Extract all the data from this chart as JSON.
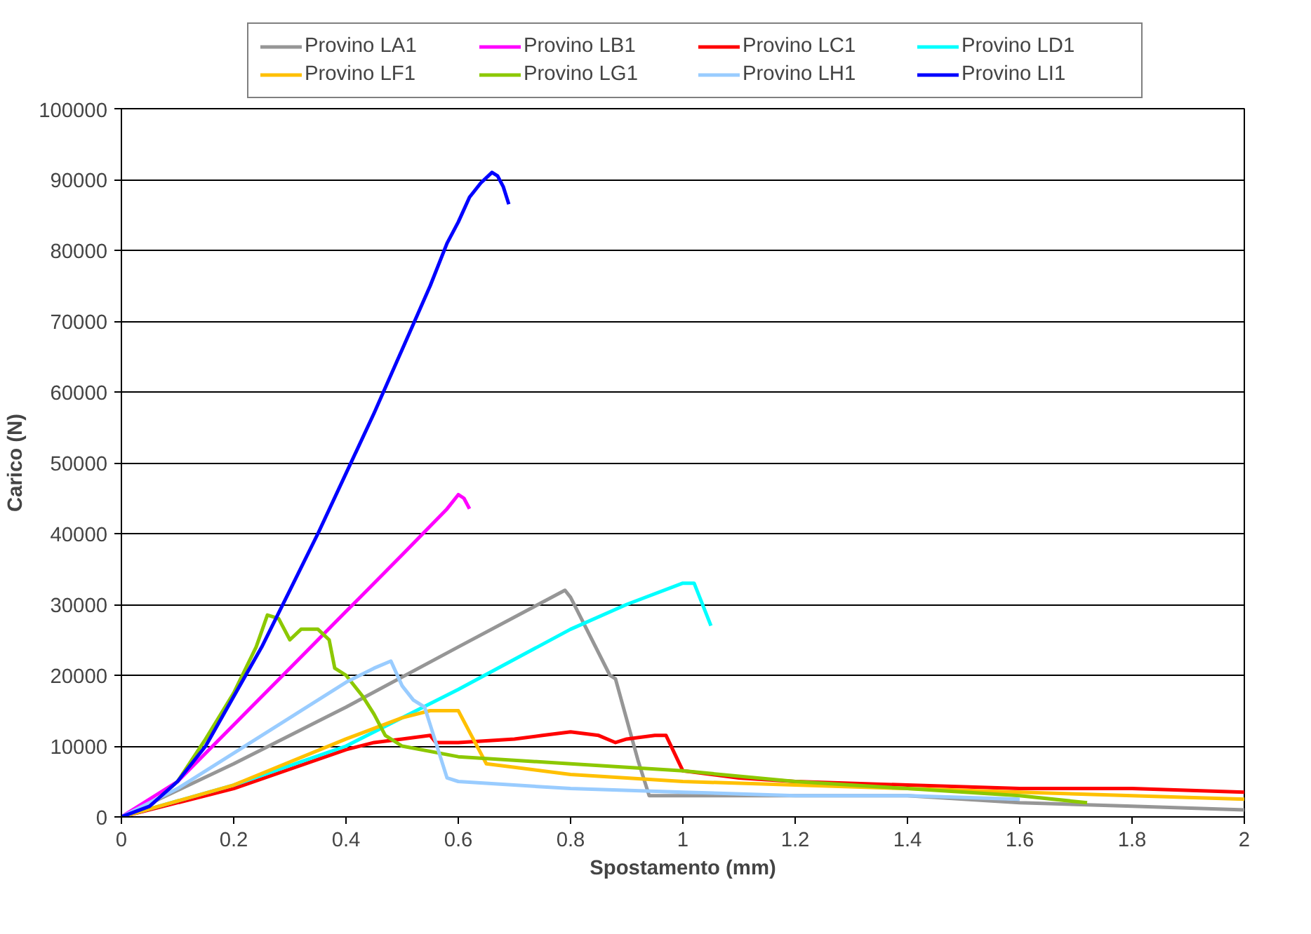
{
  "chart_data": {
    "type": "line",
    "xlabel": "Spostamento (mm)",
    "ylabel": "Carico (N)",
    "xlim": [
      0,
      2
    ],
    "ylim": [
      0,
      100000
    ],
    "xticks": [
      0,
      0.2,
      0.4,
      0.6,
      0.8,
      1,
      1.2,
      1.4,
      1.6,
      1.8,
      2
    ],
    "yticks": [
      0,
      10000,
      20000,
      30000,
      40000,
      50000,
      60000,
      70000,
      80000,
      90000,
      100000
    ],
    "grid": "y",
    "legend": "top",
    "line_style": "solid",
    "marker": "none",
    "series": [
      {
        "name": "Provino LA1",
        "color": "#969696",
        "x": [
          0,
          0.2,
          0.4,
          0.6,
          0.79,
          0.8,
          0.87,
          0.88,
          0.92,
          0.94,
          1.0,
          1.4,
          1.6,
          1.8,
          2.0
        ],
        "values": [
          0,
          7500,
          15500,
          24000,
          32000,
          31000,
          20000,
          19500,
          8000,
          3000,
          3000,
          3000,
          2000,
          1500,
          1000
        ]
      },
      {
        "name": "Provino LB1",
        "color": "#ff00ff",
        "x": [
          0,
          0.1,
          0.2,
          0.3,
          0.4,
          0.5,
          0.58,
          0.6,
          0.61,
          0.62
        ],
        "values": [
          0,
          5000,
          13000,
          21000,
          29000,
          37000,
          43500,
          45500,
          45000,
          43500
        ]
      },
      {
        "name": "Provino LC1",
        "color": "#ff0000",
        "x": [
          0,
          0.2,
          0.4,
          0.45,
          0.5,
          0.55,
          0.56,
          0.6,
          0.7,
          0.75,
          0.8,
          0.85,
          0.88,
          0.9,
          0.95,
          0.97,
          1.0,
          1.1,
          1.2,
          1.4,
          1.6,
          1.8,
          2.0
        ],
        "values": [
          0,
          4000,
          9500,
          10500,
          11000,
          11500,
          10500,
          10500,
          11000,
          11500,
          12000,
          11500,
          10500,
          11000,
          11500,
          11500,
          6500,
          5500,
          5000,
          4500,
          4000,
          4000,
          3500
        ]
      },
      {
        "name": "Provino LD1",
        "color": "#00ffff",
        "x": [
          0,
          0.2,
          0.4,
          0.6,
          0.8,
          0.9,
          1.0,
          1.02,
          1.04,
          1.05
        ],
        "values": [
          0,
          4500,
          10000,
          18000,
          26500,
          30000,
          33000,
          33000,
          29000,
          27000
        ]
      },
      {
        "name": "Provino LF1",
        "color": "#ffc000",
        "x": [
          0,
          0.2,
          0.4,
          0.5,
          0.55,
          0.6,
          0.62,
          0.65,
          0.7,
          0.8,
          1.0,
          1.2,
          1.4,
          1.6,
          1.8,
          2.0
        ],
        "values": [
          0,
          4500,
          11000,
          14000,
          15000,
          15000,
          12000,
          7500,
          7000,
          6000,
          5000,
          4500,
          4000,
          3500,
          3000,
          2500
        ]
      },
      {
        "name": "Provino LG1",
        "color": "#8cc800",
        "x": [
          0,
          0.05,
          0.1,
          0.15,
          0.2,
          0.24,
          0.26,
          0.28,
          0.3,
          0.32,
          0.35,
          0.37,
          0.38,
          0.4,
          0.43,
          0.45,
          0.47,
          0.5,
          0.6,
          0.8,
          1.0,
          1.2,
          1.4,
          1.6,
          1.72
        ],
        "values": [
          0,
          1500,
          5000,
          11000,
          17500,
          24000,
          28500,
          28000,
          25000,
          26500,
          26500,
          25000,
          21000,
          20000,
          17000,
          14500,
          11500,
          10000,
          8500,
          7500,
          6500,
          5000,
          4000,
          3000,
          2000
        ]
      },
      {
        "name": "Provino LH1",
        "color": "#99ccff",
        "x": [
          0,
          0.1,
          0.2,
          0.3,
          0.4,
          0.45,
          0.48,
          0.5,
          0.52,
          0.54,
          0.58,
          0.6,
          0.8,
          1.0,
          1.2,
          1.4,
          1.6
        ],
        "values": [
          0,
          4000,
          9000,
          14000,
          19000,
          21000,
          22000,
          18500,
          16500,
          15500,
          5500,
          5000,
          4000,
          3500,
          3000,
          3000,
          2500
        ]
      },
      {
        "name": "Provino LI1",
        "color": "#0000ff",
        "x": [
          0,
          0.05,
          0.1,
          0.15,
          0.2,
          0.25,
          0.3,
          0.35,
          0.4,
          0.45,
          0.5,
          0.55,
          0.58,
          0.6,
          0.62,
          0.64,
          0.66,
          0.67,
          0.68,
          0.69
        ],
        "values": [
          0,
          1500,
          5000,
          10000,
          17000,
          24000,
          32000,
          40000,
          48500,
          57000,
          66000,
          75000,
          81000,
          84000,
          87500,
          89500,
          91000,
          90500,
          89000,
          86500
        ]
      }
    ]
  }
}
